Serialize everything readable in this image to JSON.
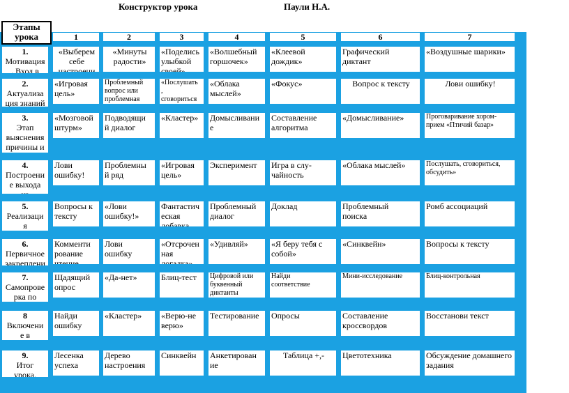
{
  "title": {
    "left": "Конструктор урока",
    "right": "Паули Н.А."
  },
  "header": {
    "stages_label": "Этапы\nурока",
    "columns": [
      "1",
      "2",
      "3",
      "4",
      "5",
      "6",
      "7"
    ]
  },
  "rows": [
    {
      "num": "1.",
      "label": "Мотивация\n. Вход в",
      "cells": [
        "«Выберем\nсебе\nнастроени",
        "«Минуты\nрадости»",
        "«Поделись\nулыбкой\nсвоей»",
        "«Волшебный\nгоршочек»",
        "«Клеевой\nдождик»",
        "Графический\nдиктант",
        "«Воздушные шарики»"
      ]
    },
    {
      "num": "2.",
      "label": "Актуализа\nция знаний",
      "cells": [
        "«Игровая\nцель»",
        "Проблемный\nвопрос или\nпроблемная\nзадача",
        "«Послушать\n,\nсговориться\n, обсудить»",
        "«Облака\nмыслей»",
        "«Фокус»",
        "Вопрос к тексту",
        "Лови ошибку!"
      ]
    },
    {
      "num": "3.",
      "label": "Этап\nвыяснения\nпричины и\nместа",
      "cells": [
        "«Мозговой\nштурм»",
        "Подводящи\nй диалог",
        "«Кластер»",
        "Домысливани\nе",
        "Составление\nалгоритма",
        "«Домысливание»",
        "Проговаривание хором-\nприем «Птичий базар»"
      ]
    },
    {
      "num": "4.",
      "label": "Построени\nе выхода\nиз",
      "cells": [
        "Лови\nошибку!",
        "Проблемны\nй ряд",
        "«Игровая\nцель»",
        "Эксперимент",
        "Игра в слу-\nчайность",
        "«Облака мыслей»",
        "Послушать, сговориться,\nобсудить»"
      ]
    },
    {
      "num": "5.",
      "label": "Реализаци\nя\nпостроени",
      "cells": [
        "Вопросы к\nтексту",
        "«Лови\nошибку!»",
        "Фантастич\nеская\nдобавка",
        "Проблемный\nдиалог",
        "Доклад",
        "Проблемный\nпоиска",
        "Ромб ассоциаций"
      ]
    },
    {
      "num": "6.",
      "label": "Первичное\nзакреплени",
      "cells": [
        "Комменти\nрование\nчтение",
        "Лови\nошибку",
        "«Отсрочен\nная\nдогадка»",
        "«Удивляй»",
        "«Я беру тебя с\nсобой»",
        "«Синквейн»",
        "Вопросы к тексту"
      ]
    },
    {
      "num": "7.",
      "label": "Самопрове\nрка по\nэталону",
      "cells": [
        "Щадящий\nопрос",
        "«Да-нет»",
        "Блиц-тест",
        "Цифровой или\nбуквенный\nдиктанты",
        "Найди\nсоответствие",
        "Мини-исследование",
        "Блиц-контрольная"
      ]
    },
    {
      "num": "8",
      "label": "Включени\nе в\nсистему",
      "cells": [
        "Найди\nошибку",
        "«Кластер»",
        "«Верю-не\nверю»",
        "Тестирование",
        "Опросы",
        "Составление\nкроссвордов",
        "Восстанови текст"
      ]
    },
    {
      "num": "9.",
      "label": "Итог\nурока.\nРефлексия",
      "cells": [
        "Лесенка\nуспеха",
        "Дерево\nнастроения",
        "Синквейн",
        "Анкетирован\nие",
        "Таблица +,-",
        "Цветотехника",
        "Обсуждение домашнего\nзадания"
      ]
    }
  ]
}
